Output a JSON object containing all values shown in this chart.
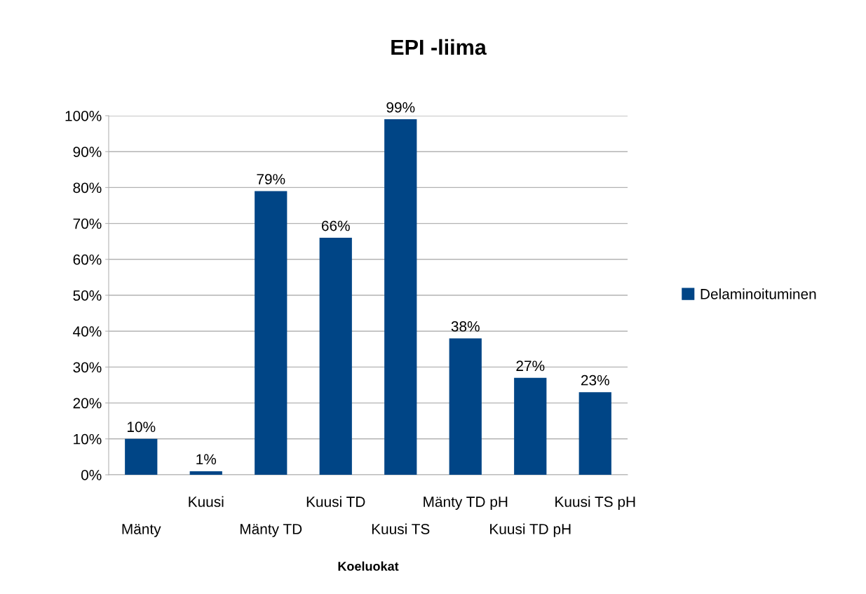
{
  "chart_data": {
    "type": "bar",
    "title": "EPI -liima",
    "xlabel": "Koeluokat",
    "categories": [
      "Mänty",
      "Kuusi",
      "Mänty TD",
      "Kuusi TD",
      "Kuusi TS",
      "Mänty TD pH",
      "Kuusi TD pH",
      "Kuusi TS pH"
    ],
    "series": [
      {
        "name": "Delaminoituminen",
        "color": "#004586",
        "values": [
          10,
          1,
          79,
          66,
          99,
          38,
          27,
          23
        ],
        "value_labels": [
          "10%",
          "1%",
          "79%",
          "66%",
          "99%",
          "38%",
          "27%",
          "23%"
        ]
      }
    ],
    "ylim": [
      0,
      100
    ],
    "yticks": [
      {
        "value": 0,
        "label": "0%"
      },
      {
        "value": 10,
        "label": "10%"
      },
      {
        "value": 20,
        "label": "20%"
      },
      {
        "value": 30,
        "label": "30%"
      },
      {
        "value": 40,
        "label": "40%"
      },
      {
        "value": 50,
        "label": "50%"
      },
      {
        "value": 60,
        "label": "60%"
      },
      {
        "value": 70,
        "label": "70%"
      },
      {
        "value": 80,
        "label": "80%"
      },
      {
        "value": 90,
        "label": "90%"
      },
      {
        "value": 100,
        "label": "100%"
      }
    ],
    "grid": "y",
    "legend": "right"
  }
}
